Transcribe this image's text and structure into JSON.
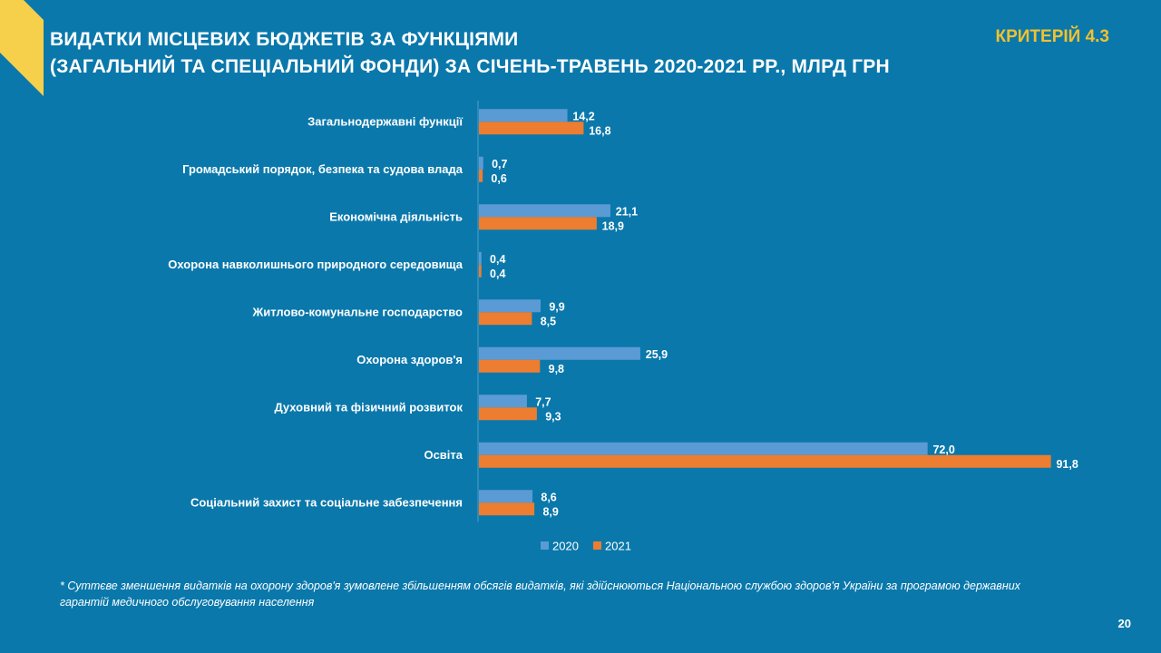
{
  "header": {
    "title_line1": "ВИДАТКИ МІСЦЕВИХ БЮДЖЕТІВ ЗА ФУНКЦІЯМИ",
    "title_line2": "(ЗАГАЛЬНИЙ ТА СПЕЦІАЛЬНИЙ ФОНДИ) ЗА СІЧЕНЬ-ТРАВЕНЬ 2020-2021 РР., МЛРД ГРН",
    "criterion": "КРИТЕРІЙ 4.3"
  },
  "footnote": "* Суттєве зменшення видатків на охорону здоров'я зумовлене збільшенням обсягів видатків, які здійснюються Національною службою здоров'я України за програмою державних гарантій медичного обслуговування населення",
  "page_number": "20",
  "colors": {
    "background": "#0a78ab",
    "accent": "#f2c12e",
    "series_2020": "#5b9bd5",
    "series_2021": "#ed7d31"
  },
  "chart_data": {
    "type": "bar",
    "orientation": "horizontal",
    "title": "ВИДАТКИ МІСЦЕВИХ БЮДЖЕТІВ ЗА ФУНКЦІЯМИ (ЗАГАЛЬНИЙ ТА СПЕЦІАЛЬНИЙ ФОНДИ) ЗА СІЧЕНЬ-ТРАВЕНЬ 2020-2021 РР., МЛРД ГРН",
    "categories": [
      "Загальнодержавні функції",
      "Громадський порядок, безпека та судова влада",
      "Економічна діяльність",
      "Охорона навколишнього природного середовища",
      "Житлово-комунальне господарство",
      "Охорона здоров'я",
      "Духовний та фізичний розвиток",
      "Освіта",
      "Соціальний захист та соціальне забезпечення"
    ],
    "series": [
      {
        "name": "2020",
        "values": [
          14.2,
          0.7,
          21.1,
          0.4,
          9.9,
          25.9,
          7.7,
          72.0,
          8.6
        ],
        "labels": [
          "14,2",
          "0,7",
          "21,1",
          "0,4",
          "9,9",
          "25,9",
          "7,7",
          "72,0",
          "8,6"
        ]
      },
      {
        "name": "2021",
        "values": [
          16.8,
          0.6,
          18.9,
          0.4,
          8.5,
          9.8,
          9.3,
          91.8,
          8.9
        ],
        "labels": [
          "16,8",
          "0,6",
          "18,9",
          "0,4",
          "8,5",
          "9,8",
          "9,3",
          "91,8",
          "8,9"
        ]
      }
    ],
    "xlim": [
      0,
      100
    ],
    "grid": false,
    "legend": "bottom-center",
    "xlabel": "",
    "ylabel": ""
  }
}
